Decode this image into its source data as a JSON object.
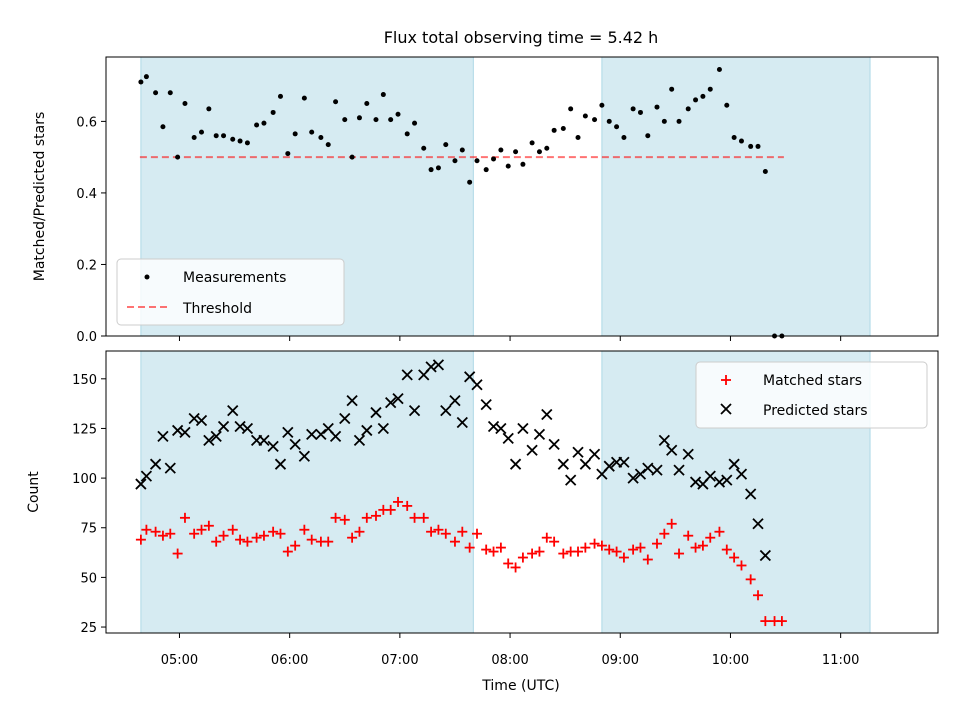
{
  "title": "Flux total observing time = 5.42 h",
  "colors": {
    "shade": "#add8e6",
    "measurement": "#000000",
    "threshold": "#ff0000",
    "matched": "#ff0000",
    "predicted": "#000000"
  },
  "chart_data": [
    {
      "type": "scatter",
      "panel": "top",
      "ylabel": "Matched/Predicted stars",
      "xlim": [
        "04:20",
        "11:53"
      ],
      "ylim": [
        0,
        0.78
      ],
      "yticks": [
        0.0,
        0.2,
        0.4,
        0.6
      ],
      "ytick_labels": [
        "0.0",
        "0.2",
        "0.4",
        "0.6"
      ],
      "legend_position": "lower left",
      "shaded_intervals": [
        [
          "04:39",
          "07:40"
        ],
        [
          "08:50",
          "11:16"
        ]
      ],
      "threshold": {
        "name": "Threshold",
        "value": 0.5,
        "style": "dashed",
        "color": "#ff0000"
      },
      "series": [
        {
          "name": "Measurements",
          "color": "#000000",
          "marker": "dot",
          "points": [
            [
              "04:39",
              0.71
            ],
            [
              "04:42",
              0.725
            ],
            [
              "04:47",
              0.68
            ],
            [
              "04:51",
              0.585
            ],
            [
              "04:55",
              0.68
            ],
            [
              "04:59",
              0.5
            ],
            [
              "05:03",
              0.65
            ],
            [
              "05:08",
              0.555
            ],
            [
              "05:12",
              0.57
            ],
            [
              "05:16",
              0.635
            ],
            [
              "05:20",
              0.56
            ],
            [
              "05:24",
              0.56
            ],
            [
              "05:29",
              0.55
            ],
            [
              "05:33",
              0.545
            ],
            [
              "05:37",
              0.54
            ],
            [
              "05:42",
              0.59
            ],
            [
              "05:46",
              0.595
            ],
            [
              "05:51",
              0.625
            ],
            [
              "05:55",
              0.67
            ],
            [
              "05:59",
              0.51
            ],
            [
              "06:03",
              0.565
            ],
            [
              "06:08",
              0.665
            ],
            [
              "06:12",
              0.57
            ],
            [
              "06:17",
              0.555
            ],
            [
              "06:21",
              0.535
            ],
            [
              "06:25",
              0.655
            ],
            [
              "06:30",
              0.605
            ],
            [
              "06:34",
              0.5
            ],
            [
              "06:38",
              0.61
            ],
            [
              "06:42",
              0.65
            ],
            [
              "06:47",
              0.605
            ],
            [
              "06:51",
              0.675
            ],
            [
              "06:55",
              0.605
            ],
            [
              "06:59",
              0.62
            ],
            [
              "07:04",
              0.565
            ],
            [
              "07:08",
              0.595
            ],
            [
              "07:13",
              0.525
            ],
            [
              "07:17",
              0.465
            ],
            [
              "07:21",
              0.47
            ],
            [
              "07:25",
              0.535
            ],
            [
              "07:30",
              0.49
            ],
            [
              "07:34",
              0.52
            ],
            [
              "07:38",
              0.43
            ],
            [
              "07:42",
              0.49
            ],
            [
              "07:47",
              0.465
            ],
            [
              "07:51",
              0.495
            ],
            [
              "07:55",
              0.52
            ],
            [
              "07:59",
              0.475
            ],
            [
              "08:03",
              0.515
            ],
            [
              "08:07",
              0.48
            ],
            [
              "08:12",
              0.54
            ],
            [
              "08:16",
              0.515
            ],
            [
              "08:20",
              0.525
            ],
            [
              "08:24",
              0.575
            ],
            [
              "08:29",
              0.58
            ],
            [
              "08:33",
              0.635
            ],
            [
              "08:37",
              0.555
            ],
            [
              "08:41",
              0.615
            ],
            [
              "08:46",
              0.605
            ],
            [
              "08:50",
              0.645
            ],
            [
              "08:54",
              0.6
            ],
            [
              "08:58",
              0.585
            ],
            [
              "09:02",
              0.555
            ],
            [
              "09:07",
              0.635
            ],
            [
              "09:11",
              0.625
            ],
            [
              "09:15",
              0.56
            ],
            [
              "09:20",
              0.64
            ],
            [
              "09:24",
              0.6
            ],
            [
              "09:28",
              0.69
            ],
            [
              "09:32",
              0.6
            ],
            [
              "09:37",
              0.635
            ],
            [
              "09:41",
              0.66
            ],
            [
              "09:45",
              0.67
            ],
            [
              "09:49",
              0.69
            ],
            [
              "09:54",
              0.745
            ],
            [
              "09:58",
              0.645
            ],
            [
              "10:02",
              0.555
            ],
            [
              "10:06",
              0.545
            ],
            [
              "10:11",
              0.53
            ],
            [
              "10:15",
              0.53
            ],
            [
              "10:19",
              0.46
            ],
            [
              "10:24",
              0.0
            ],
            [
              "10:28",
              0.0
            ]
          ]
        }
      ]
    },
    {
      "type": "scatter",
      "panel": "bottom",
      "xlabel": "Time (UTC)",
      "ylabel": "Count",
      "xlim": [
        "04:20",
        "11:53"
      ],
      "ylim": [
        22,
        164
      ],
      "xticks": [
        "05:00",
        "06:00",
        "07:00",
        "08:00",
        "09:00",
        "10:00",
        "11:00"
      ],
      "yticks": [
        25,
        50,
        75,
        100,
        125,
        150
      ],
      "legend_position": "upper right",
      "shaded_intervals": [
        [
          "04:39",
          "07:40"
        ],
        [
          "08:50",
          "11:16"
        ]
      ],
      "series": [
        {
          "name": "Matched stars",
          "color": "#ff0000",
          "marker": "plus",
          "points": [
            [
              "04:39",
              69
            ],
            [
              "04:42",
              74
            ],
            [
              "04:47",
              73
            ],
            [
              "04:51",
              71
            ],
            [
              "04:55",
              72
            ],
            [
              "04:59",
              62
            ],
            [
              "05:03",
              80
            ],
            [
              "05:08",
              72
            ],
            [
              "05:12",
              74
            ],
            [
              "05:16",
              76
            ],
            [
              "05:20",
              68
            ],
            [
              "05:24",
              71
            ],
            [
              "05:29",
              74
            ],
            [
              "05:33",
              69
            ],
            [
              "05:37",
              68
            ],
            [
              "05:42",
              70
            ],
            [
              "05:46",
              71
            ],
            [
              "05:51",
              73
            ],
            [
              "05:55",
              72
            ],
            [
              "05:59",
              63
            ],
            [
              "06:03",
              66
            ],
            [
              "06:08",
              74
            ],
            [
              "06:12",
              69
            ],
            [
              "06:17",
              68
            ],
            [
              "06:21",
              68
            ],
            [
              "06:25",
              80
            ],
            [
              "06:30",
              79
            ],
            [
              "06:34",
              70
            ],
            [
              "06:38",
              73
            ],
            [
              "06:42",
              80
            ],
            [
              "06:47",
              81
            ],
            [
              "06:51",
              84
            ],
            [
              "06:55",
              84
            ],
            [
              "06:59",
              88
            ],
            [
              "07:04",
              86
            ],
            [
              "07:08",
              80
            ],
            [
              "07:13",
              80
            ],
            [
              "07:17",
              73
            ],
            [
              "07:21",
              74
            ],
            [
              "07:25",
              72
            ],
            [
              "07:30",
              68
            ],
            [
              "07:34",
              73
            ],
            [
              "07:38",
              65
            ],
            [
              "07:42",
              72
            ],
            [
              "07:47",
              64
            ],
            [
              "07:51",
              63
            ],
            [
              "07:55",
              65
            ],
            [
              "07:59",
              57
            ],
            [
              "08:03",
              55
            ],
            [
              "08:07",
              60
            ],
            [
              "08:12",
              62
            ],
            [
              "08:16",
              63
            ],
            [
              "08:20",
              70
            ],
            [
              "08:24",
              68
            ],
            [
              "08:29",
              62
            ],
            [
              "08:33",
              63
            ],
            [
              "08:37",
              63
            ],
            [
              "08:41",
              65
            ],
            [
              "08:46",
              67
            ],
            [
              "08:50",
              66
            ],
            [
              "08:54",
              64
            ],
            [
              "08:58",
              63
            ],
            [
              "09:02",
              60
            ],
            [
              "09:07",
              64
            ],
            [
              "09:11",
              65
            ],
            [
              "09:15",
              59
            ],
            [
              "09:20",
              67
            ],
            [
              "09:24",
              72
            ],
            [
              "09:28",
              77
            ],
            [
              "09:32",
              62
            ],
            [
              "09:37",
              71
            ],
            [
              "09:41",
              65
            ],
            [
              "09:45",
              66
            ],
            [
              "09:49",
              70
            ],
            [
              "09:54",
              73
            ],
            [
              "09:58",
              64
            ],
            [
              "10:02",
              60
            ],
            [
              "10:06",
              56
            ],
            [
              "10:11",
              49
            ],
            [
              "10:15",
              41
            ],
            [
              "10:19",
              28
            ],
            [
              "10:24",
              28
            ],
            [
              "10:28",
              28
            ]
          ]
        },
        {
          "name": "Predicted stars",
          "color": "#000000",
          "marker": "cross",
          "points": [
            [
              "04:39",
              97
            ],
            [
              "04:42",
              101
            ],
            [
              "04:47",
              107
            ],
            [
              "04:51",
              121
            ],
            [
              "04:55",
              105
            ],
            [
              "04:59",
              124
            ],
            [
              "05:03",
              123
            ],
            [
              "05:08",
              130
            ],
            [
              "05:12",
              129
            ],
            [
              "05:16",
              119
            ],
            [
              "05:20",
              121
            ],
            [
              "05:24",
              126
            ],
            [
              "05:29",
              134
            ],
            [
              "05:33",
              126
            ],
            [
              "05:37",
              125
            ],
            [
              "05:42",
              119
            ],
            [
              "05:46",
              119
            ],
            [
              "05:51",
              116
            ],
            [
              "05:55",
              107
            ],
            [
              "05:59",
              123
            ],
            [
              "06:03",
              117
            ],
            [
              "06:08",
              111
            ],
            [
              "06:12",
              122
            ],
            [
              "06:17",
              122
            ],
            [
              "06:21",
              125
            ],
            [
              "06:25",
              121
            ],
            [
              "06:30",
              130
            ],
            [
              "06:34",
              139
            ],
            [
              "06:38",
              119
            ],
            [
              "06:42",
              124
            ],
            [
              "06:47",
              133
            ],
            [
              "06:51",
              125
            ],
            [
              "06:55",
              138
            ],
            [
              "06:59",
              140
            ],
            [
              "07:04",
              152
            ],
            [
              "07:08",
              134
            ],
            [
              "07:13",
              152
            ],
            [
              "07:17",
              156
            ],
            [
              "07:21",
              157
            ],
            [
              "07:25",
              134
            ],
            [
              "07:30",
              139
            ],
            [
              "07:34",
              128
            ],
            [
              "07:38",
              151
            ],
            [
              "07:42",
              147
            ],
            [
              "07:47",
              137
            ],
            [
              "07:51",
              126
            ],
            [
              "07:55",
              125
            ],
            [
              "07:59",
              120
            ],
            [
              "08:03",
              107
            ],
            [
              "08:07",
              125
            ],
            [
              "08:12",
              114
            ],
            [
              "08:16",
              122
            ],
            [
              "08:20",
              132
            ],
            [
              "08:24",
              117
            ],
            [
              "08:29",
              107
            ],
            [
              "08:33",
              99
            ],
            [
              "08:37",
              113
            ],
            [
              "08:41",
              107
            ],
            [
              "08:46",
              112
            ],
            [
              "08:50",
              102
            ],
            [
              "08:54",
              106
            ],
            [
              "08:58",
              108
            ],
            [
              "09:02",
              108
            ],
            [
              "09:07",
              100
            ],
            [
              "09:11",
              102
            ],
            [
              "09:15",
              105
            ],
            [
              "09:20",
              104
            ],
            [
              "09:24",
              119
            ],
            [
              "09:28",
              114
            ],
            [
              "09:32",
              104
            ],
            [
              "09:37",
              112
            ],
            [
              "09:41",
              98
            ],
            [
              "09:45",
              97
            ],
            [
              "09:49",
              101
            ],
            [
              "09:54",
              98
            ],
            [
              "09:58",
              99
            ],
            [
              "10:02",
              107
            ],
            [
              "10:06",
              102
            ],
            [
              "10:11",
              92
            ],
            [
              "10:15",
              77
            ],
            [
              "10:19",
              61
            ]
          ]
        }
      ]
    }
  ]
}
